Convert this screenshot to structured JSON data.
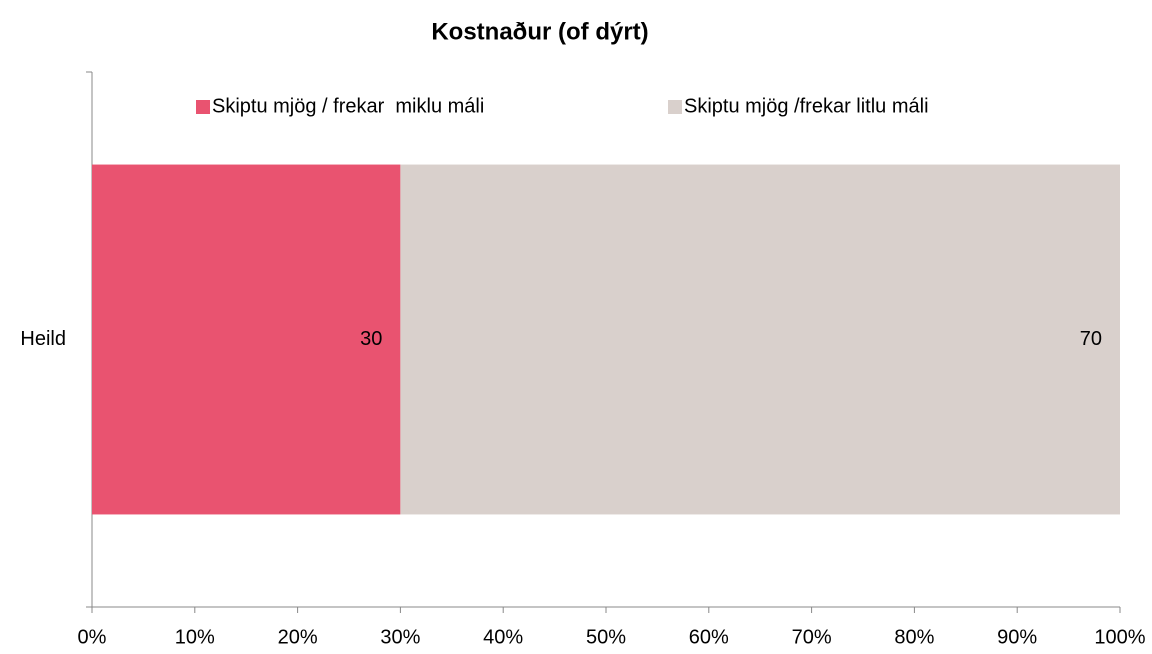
{
  "chart_data": {
    "type": "stacked_bar_horizontal",
    "title": "Kostnaður (of dýrt)",
    "categories": [
      "Heild"
    ],
    "series": [
      {
        "name": "Skiptu mjög / frekar  miklu máli",
        "color": "#e95370",
        "values": [
          30
        ]
      },
      {
        "name": "Skiptu mjög /frekar litlu máli",
        "color": "#d9d0cc",
        "values": [
          70
        ]
      }
    ],
    "xlim": [
      0,
      100
    ],
    "xticks": [
      {
        "value": 0,
        "label": "0%"
      },
      {
        "value": 10,
        "label": "10%"
      },
      {
        "value": 20,
        "label": "20%"
      },
      {
        "value": 30,
        "label": "30%"
      },
      {
        "value": 40,
        "label": "40%"
      },
      {
        "value": 50,
        "label": "50%"
      },
      {
        "value": 60,
        "label": "60%"
      },
      {
        "value": 70,
        "label": "70%"
      },
      {
        "value": 80,
        "label": "80%"
      },
      {
        "value": 90,
        "label": "90%"
      },
      {
        "value": 100,
        "label": "100%"
      }
    ],
    "legend": "top",
    "grid": false
  }
}
